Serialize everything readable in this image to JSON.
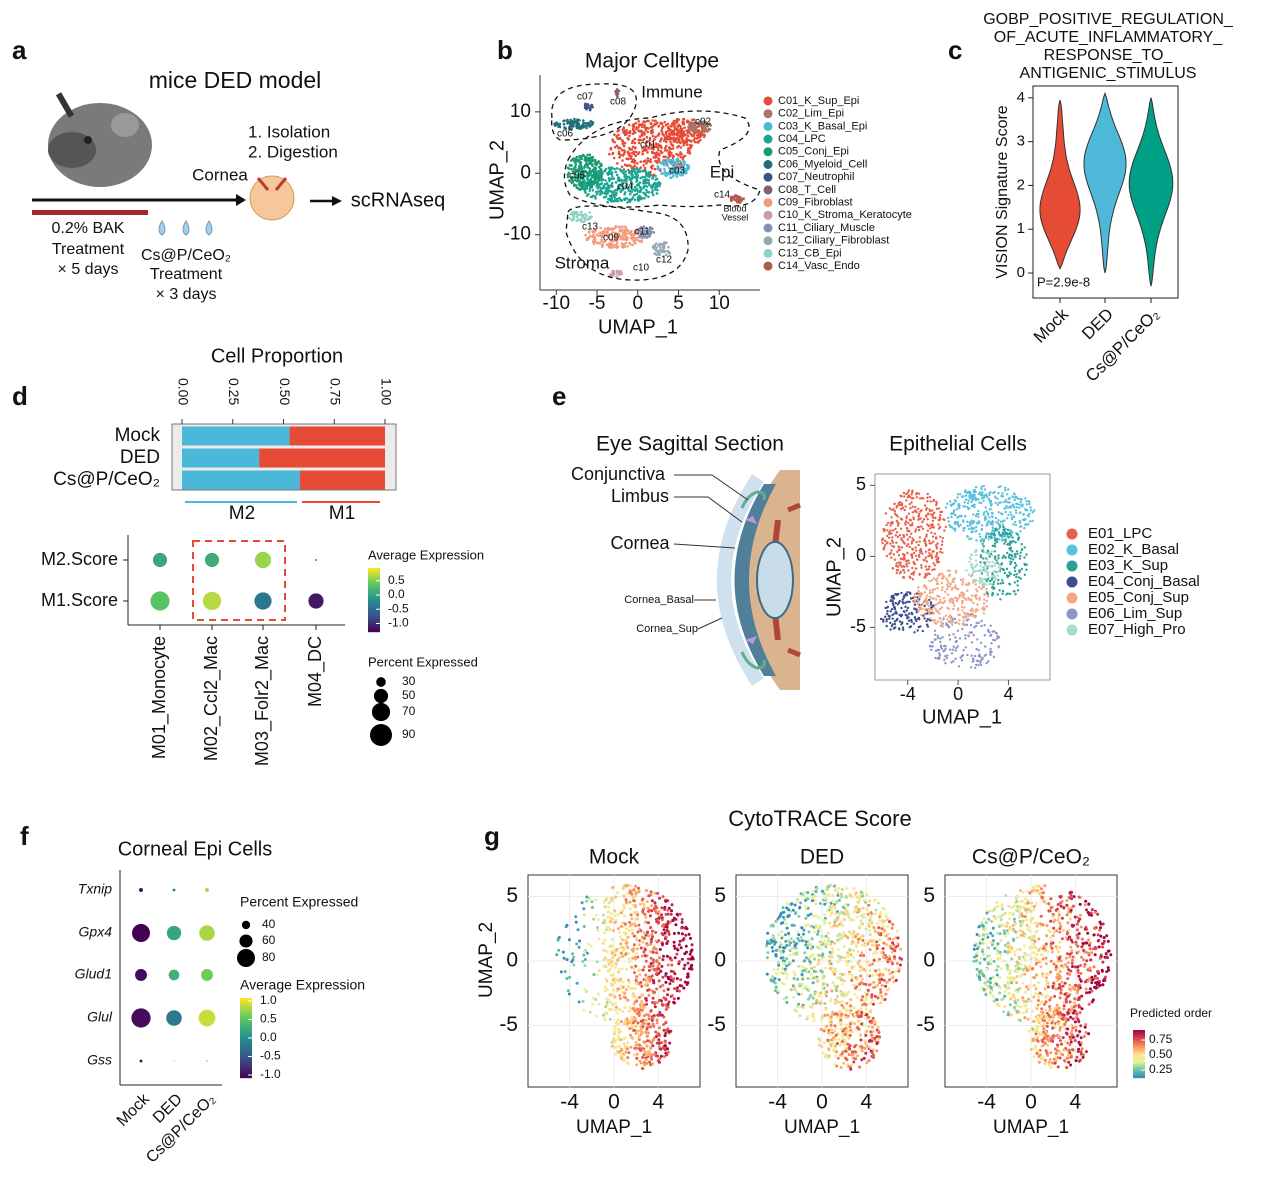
{
  "panel_labels": [
    "a",
    "b",
    "c",
    "d",
    "e",
    "f",
    "g"
  ],
  "a": {
    "title": "mice DED model",
    "steps": [
      "1.  Isolation",
      "2.  Digestion"
    ],
    "cornea": "Cornea",
    "output": "scRNAseq",
    "bak": [
      "0.2% BAK",
      "Treatment",
      "× 5 days"
    ],
    "treatment": [
      "Cs@P/CeO₂",
      "Treatment",
      "× 3 days"
    ]
  },
  "b": {
    "type": "scatter",
    "title": "Major Celltype",
    "xlabel": "UMAP_1",
    "ylabel": "UMAP_2",
    "xlim": [
      -12,
      15
    ],
    "ylim": [
      -19,
      16
    ],
    "xticks": [
      -10,
      -5,
      0,
      5,
      10
    ],
    "yticks": [
      -10,
      0,
      10
    ],
    "series": [
      {
        "name": "C01_K_Sup_Epi",
        "color": "#e64b35"
      },
      {
        "name": "C02_Lim_Epi",
        "color": "#a5756e"
      },
      {
        "name": "C03_K_Basal_Epi",
        "color": "#4dbbd5"
      },
      {
        "name": "C04_LPC",
        "color": "#1aa592"
      },
      {
        "name": "C05_Conj_Epi",
        "color": "#199a76"
      },
      {
        "name": "C06_Myeloid_Cell",
        "color": "#1f6f78"
      },
      {
        "name": "C07_Neutrophil",
        "color": "#3c5488"
      },
      {
        "name": "C08_T_Cell",
        "color": "#8c5f6e"
      },
      {
        "name": "C09_Fibroblast",
        "color": "#f39b7f"
      },
      {
        "name": "C10_K_Stroma_Keratocyte",
        "color": "#c79fa6"
      },
      {
        "name": "C11_Ciliary_Muscle",
        "color": "#8491b4"
      },
      {
        "name": "C12_Ciliary_Fibroblast",
        "color": "#93a9b6"
      },
      {
        "name": "C13_CB_Epi",
        "color": "#91d1c2"
      },
      {
        "name": "C14_Vasc_Endo",
        "color": "#b0594f"
      }
    ],
    "cluster_labels": [
      "c01",
      "c02",
      "c03",
      "c04",
      "c05",
      "c06",
      "c07",
      "c08",
      "c09",
      "c10",
      "c11",
      "c12",
      "c13",
      "c14"
    ],
    "regions": [
      "Immune",
      "Epi",
      "Stroma"
    ],
    "blood_vessel": [
      "Blood",
      "Vessel"
    ]
  },
  "c": {
    "type": "violin",
    "title": [
      "GOBP_POSITIVE_REGULATION_",
      "OF_ACUTE_INFLAMMATORY_",
      "RESPONSE_TO_",
      "ANTIGENIC_STIMULUS"
    ],
    "ylabel": "VISION Signature Score",
    "categories": [
      "Mock",
      "DED",
      "Cs@P/CeO₂"
    ],
    "colors": [
      "#e64b35",
      "#4db8d8",
      "#00a087"
    ],
    "min": [
      0.1,
      0.0,
      -0.3
    ],
    "max": [
      3.95,
      4.1,
      4.0
    ],
    "mode": [
      1.3,
      2.6,
      2.1
    ],
    "ylim": [
      -0.57,
      4.27
    ],
    "yticks": [
      0,
      1,
      2,
      3,
      4
    ],
    "annotation": "P=2.9e-8"
  },
  "d": {
    "bar": {
      "type": "bar",
      "orientation": "horizontal",
      "stacked": true,
      "title": "Cell Proportion",
      "categories": [
        "Mock",
        "DED",
        "Cs@P/CeO₂"
      ],
      "series": [
        {
          "name": "M2",
          "color": "#4cb8d9",
          "values": [
            0.53,
            0.38,
            0.58
          ]
        },
        {
          "name": "M1",
          "color": "#e64b35",
          "values": [
            0.47,
            0.62,
            0.42
          ]
        }
      ],
      "xlim": [
        0,
        1
      ],
      "xticks": [
        {
          "value": 0,
          "label": "0.00"
        },
        0.25,
        {
          "value": 0.5,
          "label": "0.50"
        },
        0.75,
        {
          "value": 1,
          "label": "1.00"
        }
      ]
    },
    "dot": {
      "type": "dot",
      "rows": [
        "M2.Score",
        "M1.Score"
      ],
      "columns": [
        "M01_Monocyte",
        "M02_Ccl2_Mac",
        "M03_Folr2_Mac",
        "M04_DC"
      ],
      "avg_expression": [
        [
          0.05,
          0.1,
          0.6,
          -1.0
        ],
        [
          0.35,
          0.7,
          -0.4,
          -1.15
        ]
      ],
      "percent_expressed": [
        [
          50,
          50,
          60,
          3
        ],
        [
          75,
          70,
          65,
          55
        ]
      ],
      "color_title": "Average Expression",
      "color_lim": [
        -1.3,
        0.95
      ],
      "color_ticks": [
        0.5,
        {
          "value": 0,
          "label": "0.0"
        },
        -0.5,
        {
          "value": -1,
          "label": "-1.0"
        }
      ],
      "size_title": "Percent Expressed",
      "size_ticks": [
        30,
        50,
        70,
        90
      ]
    }
  },
  "e": {
    "section_title": "Eye Sagittal Section",
    "section_labels": [
      "Conjunctiva",
      "Limbus",
      "Cornea",
      "Cornea_Basal",
      "Cornea_Sup"
    ],
    "type": "scatter",
    "title": "Epithelial Cells",
    "xlabel": "UMAP_1",
    "ylabel": "UMAP_2",
    "xlim": [
      -6.6,
      7.3
    ],
    "ylim": [
      -8.7,
      5.8
    ],
    "xticks": [
      -4,
      0,
      4
    ],
    "yticks": [
      -5,
      0,
      5
    ],
    "series": [
      {
        "name": "E01_LPC",
        "color": "#e8604c"
      },
      {
        "name": "E02_K_Basal",
        "color": "#5bc0de"
      },
      {
        "name": "E03_K_Sup",
        "color": "#2aa198"
      },
      {
        "name": "E04_Conj_Basal",
        "color": "#3b4e8c"
      },
      {
        "name": "E05_Conj_Sup",
        "color": "#f4a582"
      },
      {
        "name": "E06_Lim_Sup",
        "color": "#8c96c6"
      },
      {
        "name": "E07_High_Pro",
        "color": "#a8dcc8"
      }
    ]
  },
  "f": {
    "type": "dot",
    "title": "Corneal Epi Cells",
    "rows": [
      "Txnip",
      "Gpx4",
      "Glud1",
      "Glul",
      "Gss"
    ],
    "columns": [
      "Mock",
      "DED",
      "Cs@P/CeO₂"
    ],
    "avg_expression": [
      [
        -1.0,
        0.0,
        0.8
      ],
      [
        -1.1,
        0.2,
        0.8
      ],
      [
        -1.0,
        0.3,
        0.6
      ],
      [
        -1.0,
        -0.2,
        0.9
      ],
      [
        -1.0,
        0.0,
        0.8
      ]
    ],
    "percent_expressed": [
      [
        20,
        15,
        20
      ],
      [
        80,
        65,
        70
      ],
      [
        55,
        50,
        55
      ],
      [
        85,
        70,
        75
      ],
      [
        15,
        5,
        10
      ]
    ],
    "size_title": "Percent Expressed",
    "size_ticks": [
      40,
      60,
      80
    ],
    "color_title": "Average Expression",
    "color_lim": [
      -1.08,
      1.08
    ],
    "color_ticks": [
      {
        "value": 1,
        "label": "1.0"
      },
      0.5,
      {
        "value": 0,
        "label": "0.0"
      },
      -0.5,
      {
        "value": -1,
        "label": "-1.0"
      }
    ]
  },
  "g": {
    "type": "scatter",
    "title": "CytoTRACE Score",
    "panels": [
      "Mock",
      "DED",
      "Cs@P/CeO₂"
    ],
    "xlabel": "UMAP_1",
    "ylabel": "UMAP_2",
    "xlim": [
      -7.75,
      7.75
    ],
    "ylim": [
      -9.77,
      6.67
    ],
    "xticks": [
      -4,
      0,
      4
    ],
    "yticks": [
      -5,
      0,
      5
    ],
    "color_title": "Predicted order",
    "color_lim": [
      0.117,
      0.917
    ],
    "color_ticks": [
      0.75,
      {
        "value": 0.5,
        "label": "0.50"
      },
      0.25
    ]
  }
}
